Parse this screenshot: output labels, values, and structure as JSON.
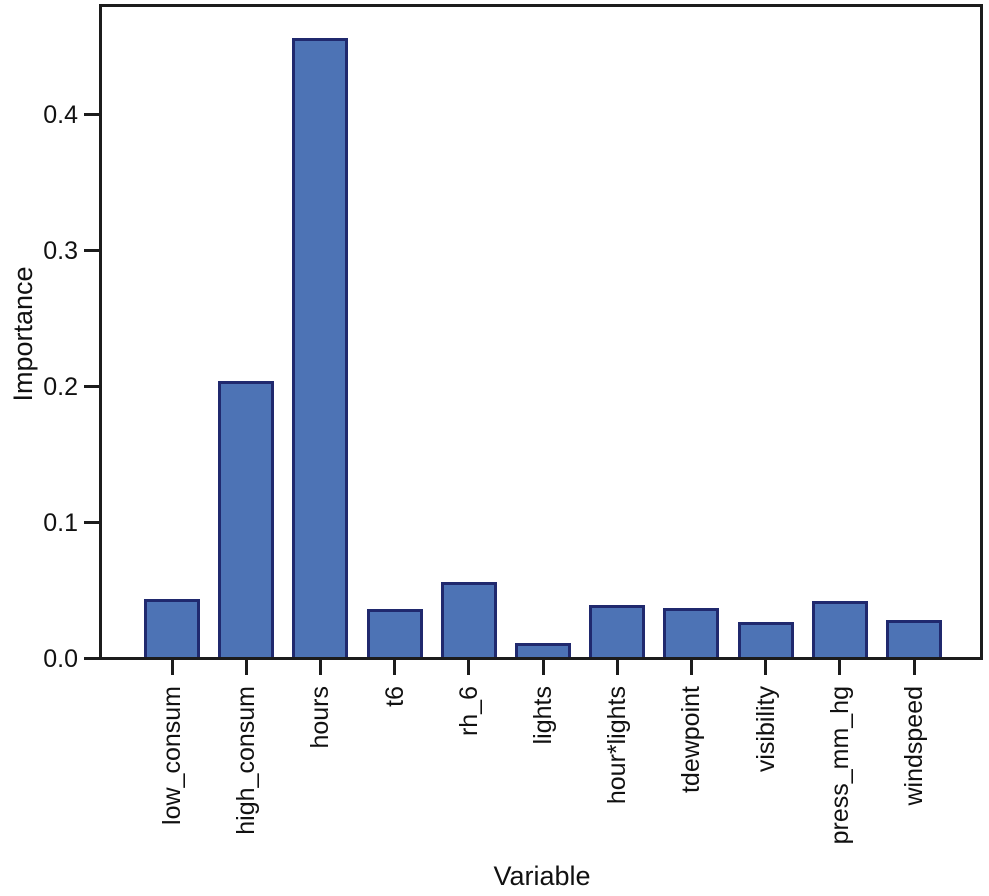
{
  "chart_data": {
    "type": "bar",
    "title": "",
    "xlabel": "Variable",
    "ylabel": "Importance",
    "categories": [
      "low_consum",
      "high_consum",
      "hours",
      "t6",
      "rh_6",
      "lights",
      "hour*lights",
      "tdewpoint",
      "visibility",
      "press_mm_hg",
      "windspeed"
    ],
    "values": [
      0.043,
      0.203,
      0.455,
      0.035,
      0.055,
      0.01,
      0.038,
      0.036,
      0.026,
      0.041,
      0.027
    ],
    "ylim": [
      0,
      0.48
    ],
    "yticks": [
      0.0,
      0.1,
      0.2,
      0.3,
      0.4
    ],
    "ytick_labels": [
      "0.0",
      "0.1",
      "0.2",
      "0.3",
      "0.4"
    ],
    "grid": false,
    "legend": null,
    "colors": {
      "bar_fill": "#4d73b5",
      "bar_edge": "#20296e",
      "axis": "#1c1c1c",
      "text": "#111111",
      "background": "#ffffff"
    }
  }
}
